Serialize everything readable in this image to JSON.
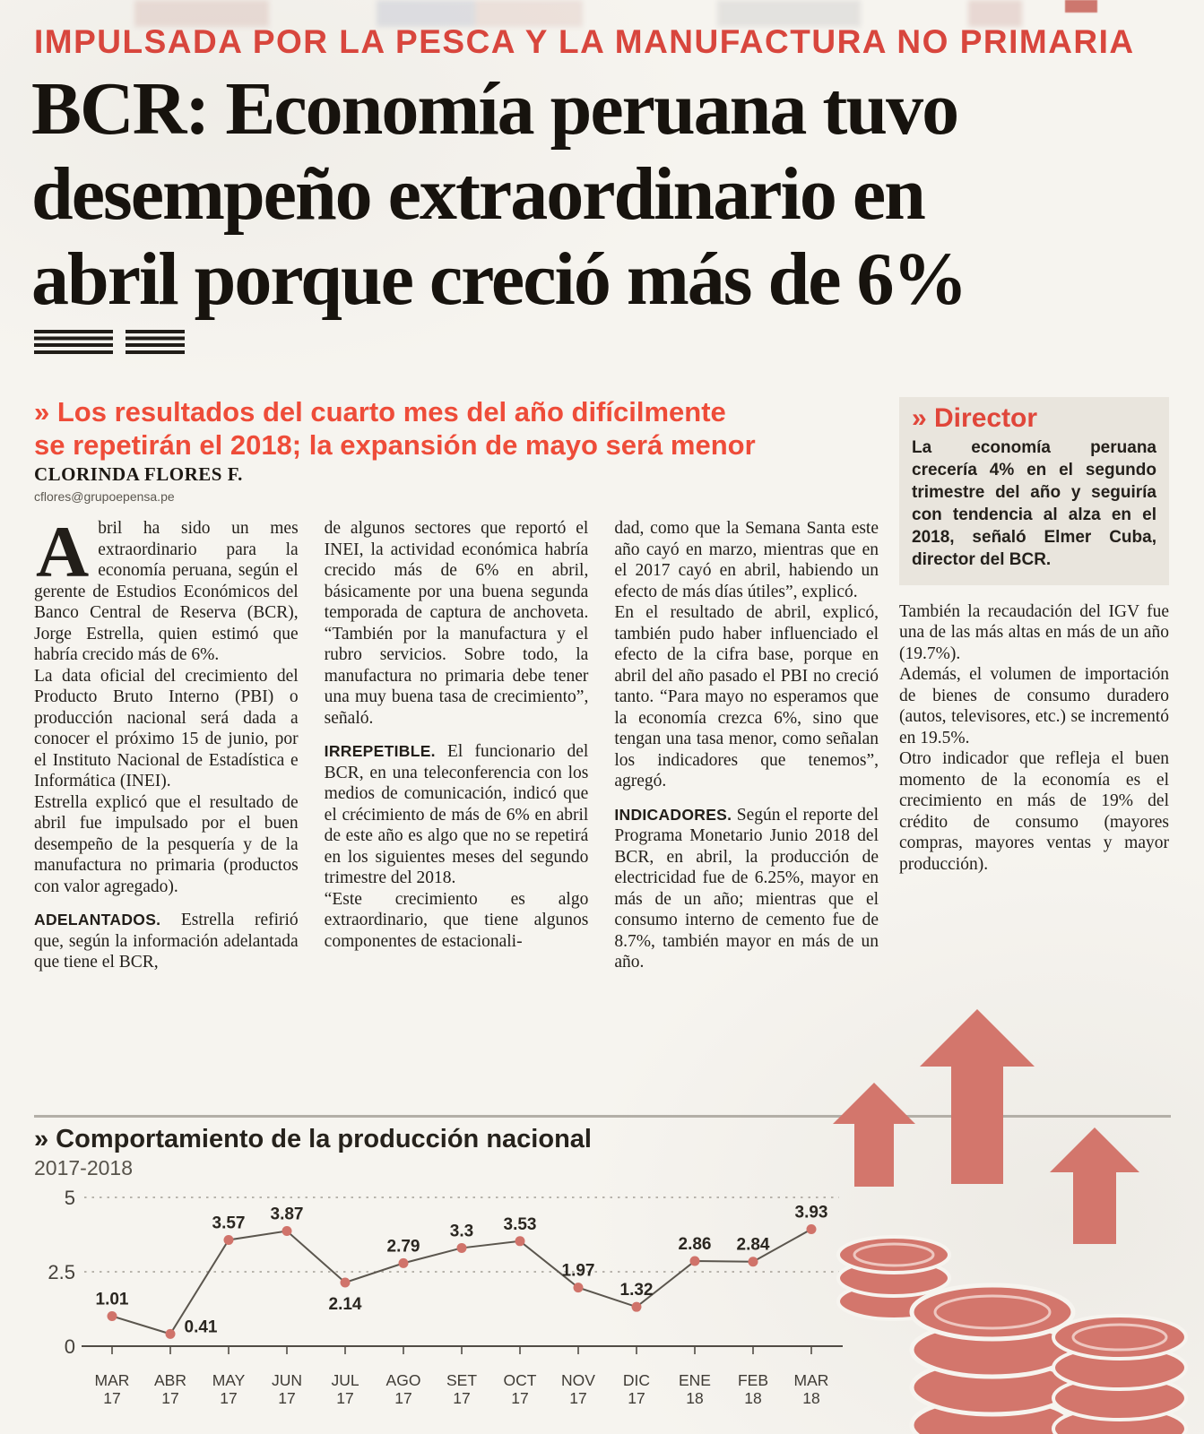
{
  "page": {
    "kicker": "IMPULSADA POR LA PESCA Y LA MANUFACTURA NO PRIMARIA",
    "headline_lines": [
      "BCR: Economía peruana tuvo",
      "desempeño extraordinario en",
      "abril porque creció más de 6%"
    ],
    "deck_lines": [
      "» Los resultados del cuarto mes del año difícilmente",
      "se repetirán el 2018; la expansión de mayo será menor"
    ],
    "byline_author": "CLORINDA FLORES F.",
    "byline_email": "cflores@grupoepensa.pe"
  },
  "article": {
    "col1": [
      {
        "dropcap": "A",
        "text": "bril ha sido un mes extraordinario para la economía peruana, según el gerente de Estudios Económicos del Banco Central de Reserva (BCR), Jorge Estrella, quien estimó que habría crecido más de 6%."
      },
      {
        "text": "La data oficial del crecimiento del Producto Bruto Interno (PBI) o producción nacional será dada a conocer el próximo 15 de junio, por el Instituto Nacional de Estadística e Informática (INEI)."
      },
      {
        "text": "Estrella explicó que el resultado de abril fue impulsado por el buen desempeño de la pesquería y de la manufactura no primaria (productos con valor agregado)."
      },
      {
        "lead": "ADELANTADOS.",
        "text": "Estrella refirió que, según la información adelantada que tiene el BCR,"
      }
    ],
    "col2": [
      {
        "text": "de algunos sectores que reportó el INEI, la actividad económica habría crecido más de 6% en abril, básicamente por una buena segunda temporada de captura de anchoveta. “También por la manufactura y el rubro servicios. Sobre todo, la manufactura no primaria debe tener una muy buena tasa de crecimiento”, señaló."
      },
      {
        "lead": "IRREPETIBLE.",
        "text": "El funcionario del BCR, en una teleconferencia con los medios de comunicación, indicó que el crécimiento de más de 6% en abril de este año es algo que no se repetirá en los siguientes meses del segundo trimestre del 2018."
      },
      {
        "text": "“Este crecimiento es algo extraordinario, que tiene algunos componentes de estacionali-"
      }
    ],
    "col3": [
      {
        "text": "dad, como que la Semana Santa este año cayó en marzo, mientras que en el 2017 cayó en abril, habiendo un efecto de más días útiles”, explicó."
      },
      {
        "text": "En el resultado de abril, explicó, también pudo haber influenciado el efecto de la cifra base, porque en abril del año pasado el PBI no creció tanto. “Para mayo no esperamos que la economía crezca 6%, sino que tengan una tasa menor, como señalan los indicadores que tenemos”, agregó."
      },
      {
        "lead": "INDICADORES.",
        "text": "Según el reporte del Programa Monetario Junio 2018 del BCR, en abril, la producción de electricidad fue de 6.25%, mayor en más de un año; mientras que el consumo interno de cemento fue de 8.7%, también mayor en más de un año."
      }
    ],
    "col4": [
      {
        "text": "También la recaudación del IGV fue una de las más altas en más de un año (19.7%)."
      },
      {
        "text": "Además, el volumen de importación de bienes de consumo duradero (autos, televisores, etc.) se incrementó en 19.5%."
      },
      {
        "text": "Otro indicador que refleja el buen momento de la economía es el crecimiento en más de 19% del crédito de consumo (mayores compras, mayores ventas y mayor producción)."
      }
    ]
  },
  "director_box": {
    "title": "» Director",
    "body": "La economía peruana crecería 4% en el segundo trimestre del año y seguiría con tendencia al alza en el 2018, señaló Elmer Cuba, director del BCR."
  },
  "chart_data": {
    "type": "line",
    "title": "» Comportamiento de la producción nacional",
    "subtitle": "2017-2018",
    "categories": [
      "MAR 17",
      "ABR 17",
      "MAY 17",
      "JUN 17",
      "JUL 17",
      "AGO 17",
      "SET 17",
      "OCT 17",
      "NOV 17",
      "DIC 17",
      "ENE 18",
      "FEB 18",
      "MAR 18"
    ],
    "values": [
      1.01,
      0.41,
      3.57,
      3.87,
      2.14,
      2.79,
      3.3,
      3.53,
      1.97,
      1.32,
      2.86,
      2.84,
      3.93
    ],
    "ylim": [
      0,
      5
    ],
    "yticks": [
      0,
      2.5,
      5
    ],
    "grid": "dotted-horizontal",
    "legend": "none",
    "point_color": "#d0736a",
    "line_color": "#5b564e"
  },
  "colors": {
    "paper": "#f6f4ef",
    "kicker_red": "#d8463d",
    "deck_red": "#ee4c39",
    "director_red": "#e0463a",
    "illustration_salmon": "#d3766c",
    "ink": "#221e19"
  }
}
